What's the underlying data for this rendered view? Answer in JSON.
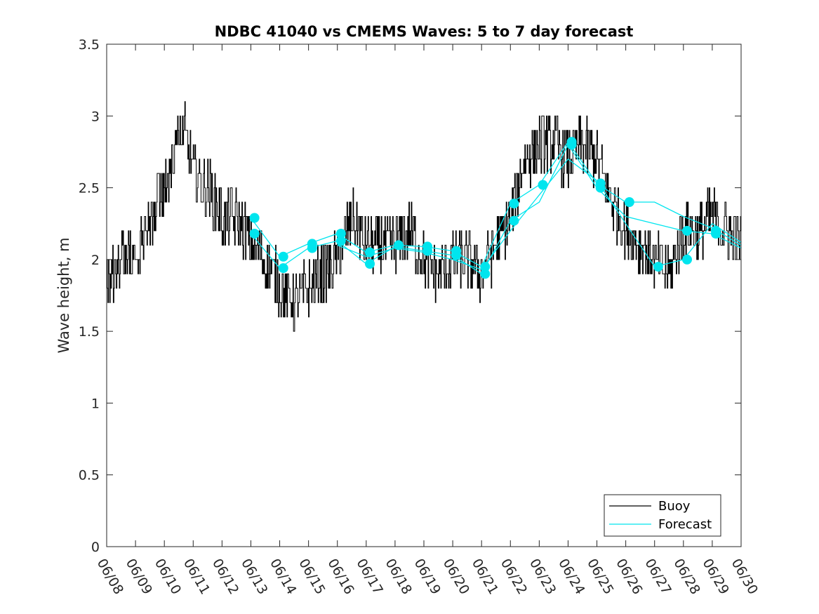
{
  "chart_data": {
    "type": "line",
    "title": "NDBC 41040 vs CMEMS Waves: 5 to 7 day forecast",
    "xlabel": "",
    "ylabel": "Wave height, m",
    "x_tick_labels": [
      "06/08",
      "06/09",
      "06/10",
      "06/11",
      "06/12",
      "06/13",
      "06/14",
      "06/15",
      "06/16",
      "06/17",
      "06/18",
      "06/19",
      "06/20",
      "06/21",
      "06/22",
      "06/23",
      "06/24",
      "06/25",
      "06/26",
      "06/27",
      "06/28",
      "06/29",
      "06/30"
    ],
    "y_tick_labels": [
      "0",
      "0.5",
      "1",
      "1.5",
      "2",
      "2.5",
      "3",
      "3.5"
    ],
    "xlim": [
      "06/08",
      "06/30"
    ],
    "ylim": [
      0,
      3.5
    ],
    "grid": false,
    "legend_position": "bottom-right",
    "colors": {
      "buoy": "#000000",
      "forecast": "#00e5ee"
    },
    "series": [
      {
        "name": "Buoy",
        "type": "line",
        "x": [
          "06/08",
          "06/08 12:00",
          "06/09",
          "06/09 12:00",
          "06/10",
          "06/10 08:00",
          "06/10 16:00",
          "06/11",
          "06/11 12:00",
          "06/12",
          "06/12 12:00",
          "06/13",
          "06/13 12:00",
          "06/14",
          "06/14 12:00",
          "06/15",
          "06/15 12:00",
          "06/16",
          "06/16 12:00",
          "06/17",
          "06/17 12:00",
          "06/18",
          "06/18 12:00",
          "06/19",
          "06/19 12:00",
          "06/20",
          "06/20 12:00",
          "06/21",
          "06/21 12:00",
          "06/22",
          "06/22 12:00",
          "06/23",
          "06/23 12:00",
          "06/24",
          "06/24 12:00",
          "06/25",
          "06/25 12:00",
          "06/26",
          "06/26 12:00",
          "06/27",
          "06/27 12:00",
          "06/28",
          "06/28 12:00",
          "06/29",
          "06/29 12:00",
          "06/30"
        ],
        "y": [
          1.8,
          2.0,
          2.0,
          2.3,
          2.5,
          2.8,
          2.9,
          2.6,
          2.5,
          2.3,
          2.3,
          2.1,
          2.0,
          1.8,
          1.7,
          1.8,
          1.9,
          2.0,
          2.3,
          2.1,
          2.1,
          2.1,
          2.2,
          2.0,
          1.9,
          2.0,
          2.0,
          1.9,
          2.1,
          2.3,
          2.7,
          2.8,
          2.8,
          2.7,
          2.8,
          2.7,
          2.4,
          2.2,
          2.1,
          2.0,
          1.9,
          2.2,
          2.2,
          2.3,
          2.2,
          2.1
        ]
      },
      {
        "name": "Forecast",
        "type": "line",
        "x": [
          "06/13",
          "06/14",
          "06/15",
          "06/16",
          "06/17",
          "06/18",
          "06/19",
          "06/20",
          "06/21",
          "06/22",
          "06/23",
          "06/24",
          "06/25",
          "06/26",
          "06/27",
          "06/28",
          "06/29",
          "06/30"
        ],
        "y": [
          2.29,
          2.02,
          2.11,
          2.18,
          2.05,
          2.1,
          2.09,
          2.06,
          1.95,
          2.39,
          2.52,
          2.82,
          2.53,
          2.4,
          2.4,
          2.3,
          2.22,
          2.1
        ]
      },
      {
        "name": "",
        "type": "line",
        "x": [
          "06/13",
          "06/14",
          "06/15",
          "06/16",
          "06/17",
          "06/18",
          "06/19",
          "06/20",
          "06/21",
          "06/22",
          "06/23",
          "06/24",
          "06/25",
          "06/26",
          "06/27",
          "06/28",
          "06/29",
          "06/30"
        ],
        "y": [
          2.18,
          1.94,
          2.08,
          2.13,
          1.97,
          2.09,
          2.06,
          2.03,
          1.9,
          2.27,
          2.4,
          2.8,
          2.5,
          2.3,
          2.25,
          2.2,
          2.18,
          2.08
        ]
      },
      {
        "name": "",
        "type": "line",
        "x": [
          "06/16",
          "06/17",
          "06/18",
          "06/19",
          "06/20",
          "06/21",
          "06/22",
          "06/23",
          "06/24",
          "06/25",
          "06/26",
          "06/27",
          "06/28",
          "06/29",
          "06/30"
        ],
        "y": [
          2.1,
          2.02,
          2.08,
          2.05,
          2.0,
          1.93,
          2.2,
          2.45,
          2.7,
          2.55,
          2.25,
          1.95,
          2.0,
          2.25,
          2.12
        ]
      }
    ],
    "markers": [
      {
        "x": "06/13 03:00",
        "y": 2.29
      },
      {
        "x": "06/13 03:00",
        "y": 2.18
      },
      {
        "x": "06/14 03:00",
        "y": 2.02
      },
      {
        "x": "06/14 03:00",
        "y": 1.94
      },
      {
        "x": "06/15 03:00",
        "y": 2.11
      },
      {
        "x": "06/15 03:00",
        "y": 2.08
      },
      {
        "x": "06/16 03:00",
        "y": 2.18
      },
      {
        "x": "06/16 03:00",
        "y": 2.13
      },
      {
        "x": "06/17 03:00",
        "y": 2.05
      },
      {
        "x": "06/17 03:00",
        "y": 1.97
      },
      {
        "x": "06/18 03:00",
        "y": 2.1
      },
      {
        "x": "06/19 03:00",
        "y": 2.09
      },
      {
        "x": "06/19 03:00",
        "y": 2.06
      },
      {
        "x": "06/20 03:00",
        "y": 2.06
      },
      {
        "x": "06/20 03:00",
        "y": 2.03
      },
      {
        "x": "06/21 03:00",
        "y": 1.95
      },
      {
        "x": "06/21 03:00",
        "y": 1.9
      },
      {
        "x": "06/22 03:00",
        "y": 2.39
      },
      {
        "x": "06/22 03:00",
        "y": 2.27
      },
      {
        "x": "06/23 03:00",
        "y": 2.52
      },
      {
        "x": "06/24 03:00",
        "y": 2.82
      },
      {
        "x": "06/24 03:00",
        "y": 2.8
      },
      {
        "x": "06/25 03:00",
        "y": 2.53
      },
      {
        "x": "06/25 03:00",
        "y": 2.5
      },
      {
        "x": "06/26 03:00",
        "y": 2.4
      },
      {
        "x": "06/27 03:00",
        "y": 1.95
      },
      {
        "x": "06/28 03:00",
        "y": 2.2
      },
      {
        "x": "06/28 03:00",
        "y": 2.0
      },
      {
        "x": "06/29 03:00",
        "y": 2.2
      },
      {
        "x": "06/29 03:00",
        "y": 2.18
      }
    ],
    "legend": [
      {
        "label": "Buoy",
        "color": "#000000"
      },
      {
        "label": "Forecast",
        "color": "#00e5ee"
      }
    ]
  }
}
